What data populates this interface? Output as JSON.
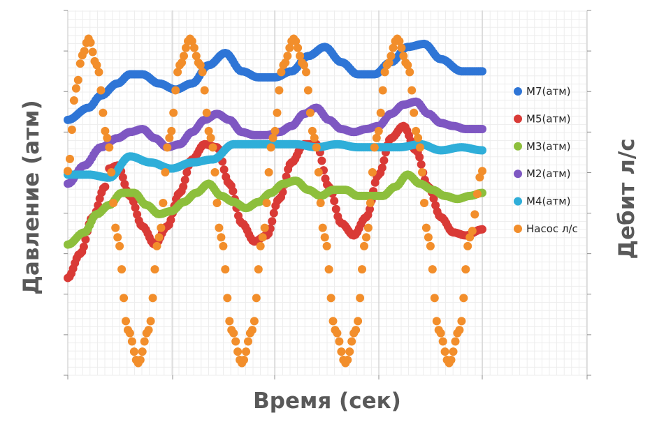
{
  "chart_data": {
    "type": "scatter",
    "xlabel": "Время (сек)",
    "ylabel": "Давление (атм)",
    "y2label": "Дебит л/с",
    "legend_position": "right",
    "grid": true,
    "tick_labels_visible": false,
    "series": [
      {
        "name": "М7(атм)",
        "color": "#2E75D6",
        "axis": "left",
        "x": [
          0.0,
          0.5,
          0.8,
          1.2,
          1.5,
          1.8,
          2.2,
          2.6,
          3.0,
          3.4,
          3.8,
          4.2,
          4.6,
          5.0,
          5.4,
          5.8,
          6.2,
          6.6,
          7.0,
          7.4,
          7.8,
          8.2,
          8.6,
          9.0,
          9.5,
          10.0
        ],
        "y": [
          8.4,
          8.8,
          9.2,
          9.6,
          9.9,
          9.9,
          9.6,
          9.4,
          9.6,
          10.2,
          10.6,
          10.0,
          9.8,
          9.8,
          10.0,
          10.5,
          10.8,
          10.3,
          9.9,
          9.9,
          10.3,
          10.8,
          10.9,
          10.4,
          10.0,
          10.0
        ]
      },
      {
        "name": "М5(атм)",
        "color": "#D93A36",
        "axis": "left",
        "x": [
          0.0,
          0.3,
          0.6,
          0.9,
          1.0,
          1.2,
          1.5,
          1.8,
          2.1,
          2.4,
          2.7,
          3.0,
          3.3,
          3.6,
          3.9,
          4.2,
          4.5,
          4.8,
          5.1,
          5.4,
          5.7,
          6.0,
          6.3,
          6.6,
          6.9,
          7.2,
          7.5,
          7.8,
          8.1,
          8.4,
          8.7,
          9.0,
          9.3,
          9.6,
          10.0
        ],
        "y": [
          3.2,
          4.0,
          5.2,
          6.2,
          6.8,
          6.9,
          5.9,
          4.9,
          4.3,
          4.9,
          6.0,
          7.1,
          7.6,
          7.5,
          6.3,
          5.0,
          4.4,
          4.6,
          5.8,
          7.0,
          7.6,
          7.6,
          6.2,
          5.0,
          4.6,
          5.2,
          6.6,
          7.8,
          8.2,
          7.4,
          6.2,
          5.2,
          4.7,
          4.6,
          4.8
        ]
      },
      {
        "name": "М3(атм)",
        "color": "#8DBF3C",
        "axis": "left",
        "x": [
          0.0,
          0.4,
          0.7,
          1.0,
          1.3,
          1.6,
          1.9,
          2.2,
          2.5,
          2.8,
          3.1,
          3.4,
          3.7,
          4.0,
          4.3,
          4.6,
          4.9,
          5.2,
          5.5,
          5.8,
          6.1,
          6.4,
          6.7,
          7.0,
          7.3,
          7.6,
          7.9,
          8.2,
          8.5,
          8.8,
          9.1,
          9.4,
          9.7,
          10.0
        ],
        "y": [
          4.3,
          4.7,
          5.3,
          5.6,
          6.0,
          6.0,
          5.6,
          5.3,
          5.4,
          5.7,
          6.0,
          6.3,
          5.9,
          5.7,
          5.5,
          5.7,
          6.0,
          6.3,
          6.4,
          6.1,
          5.9,
          6.1,
          6.1,
          5.9,
          5.9,
          5.9,
          6.2,
          6.6,
          6.3,
          6.1,
          5.9,
          5.8,
          5.9,
          6.0
        ]
      },
      {
        "name": "М2(атм)",
        "color": "#7E57C2",
        "axis": "left",
        "x": [
          0.0,
          0.4,
          0.8,
          1.2,
          1.5,
          1.8,
          2.1,
          2.4,
          2.7,
          3.0,
          3.3,
          3.6,
          3.9,
          4.2,
          4.5,
          4.8,
          5.1,
          5.4,
          5.7,
          6.0,
          6.3,
          6.6,
          6.9,
          7.2,
          7.5,
          7.8,
          8.1,
          8.4,
          8.7,
          9.0,
          9.3,
          9.6,
          10.0
        ],
        "y": [
          6.3,
          6.9,
          7.5,
          7.8,
          8.0,
          8.1,
          7.8,
          7.5,
          7.6,
          8.0,
          8.4,
          8.6,
          8.4,
          8.0,
          7.9,
          7.9,
          8.0,
          8.2,
          8.6,
          8.8,
          8.4,
          8.1,
          8.0,
          8.1,
          8.2,
          8.6,
          8.9,
          9.0,
          8.6,
          8.3,
          8.2,
          8.1,
          8.1
        ]
      },
      {
        "name": "М4(атм)",
        "color": "#2FAED9",
        "axis": "left",
        "x": [
          0.0,
          0.5,
          1.0,
          1.5,
          2.0,
          2.5,
          3.0,
          3.5,
          4.0,
          4.5,
          5.0,
          5.5,
          6.0,
          6.5,
          7.0,
          7.5,
          8.0,
          8.5,
          9.0,
          9.5,
          10.0
        ],
        "y": [
          6.6,
          6.6,
          6.5,
          7.2,
          7.0,
          6.8,
          7.0,
          7.1,
          7.6,
          7.6,
          7.6,
          7.6,
          7.5,
          7.6,
          7.5,
          7.5,
          7.5,
          7.6,
          7.4,
          7.5,
          7.4
        ]
      },
      {
        "name": "Насос л/с",
        "color": "#F28E2B",
        "axis": "right",
        "x": [
          0.0,
          0.2,
          0.35,
          0.5,
          0.7,
          0.95,
          1.2,
          1.45,
          1.7,
          1.95,
          2.2,
          2.45,
          2.7,
          2.95,
          3.2,
          3.45,
          3.7,
          3.95,
          4.2,
          4.45,
          4.7,
          4.95,
          5.2,
          5.45,
          5.7,
          5.95,
          6.2,
          6.45,
          6.7,
          6.95,
          7.2,
          7.45,
          7.7,
          7.95,
          8.2,
          8.45,
          8.7,
          8.95,
          9.2,
          9.45,
          9.7,
          10.0
        ],
        "y": [
          6.0,
          8.5,
          9.5,
          10.0,
          9.2,
          7.0,
          4.0,
          1.2,
          0.2,
          1.2,
          4.0,
          7.0,
          9.2,
          10.0,
          9.2,
          7.0,
          4.0,
          1.2,
          0.2,
          1.2,
          4.0,
          7.0,
          9.2,
          10.0,
          9.2,
          7.0,
          4.0,
          1.2,
          0.2,
          1.2,
          4.0,
          7.0,
          9.2,
          10.0,
          9.2,
          7.0,
          4.0,
          1.2,
          0.2,
          1.2,
          4.0,
          6.0
        ]
      }
    ]
  }
}
